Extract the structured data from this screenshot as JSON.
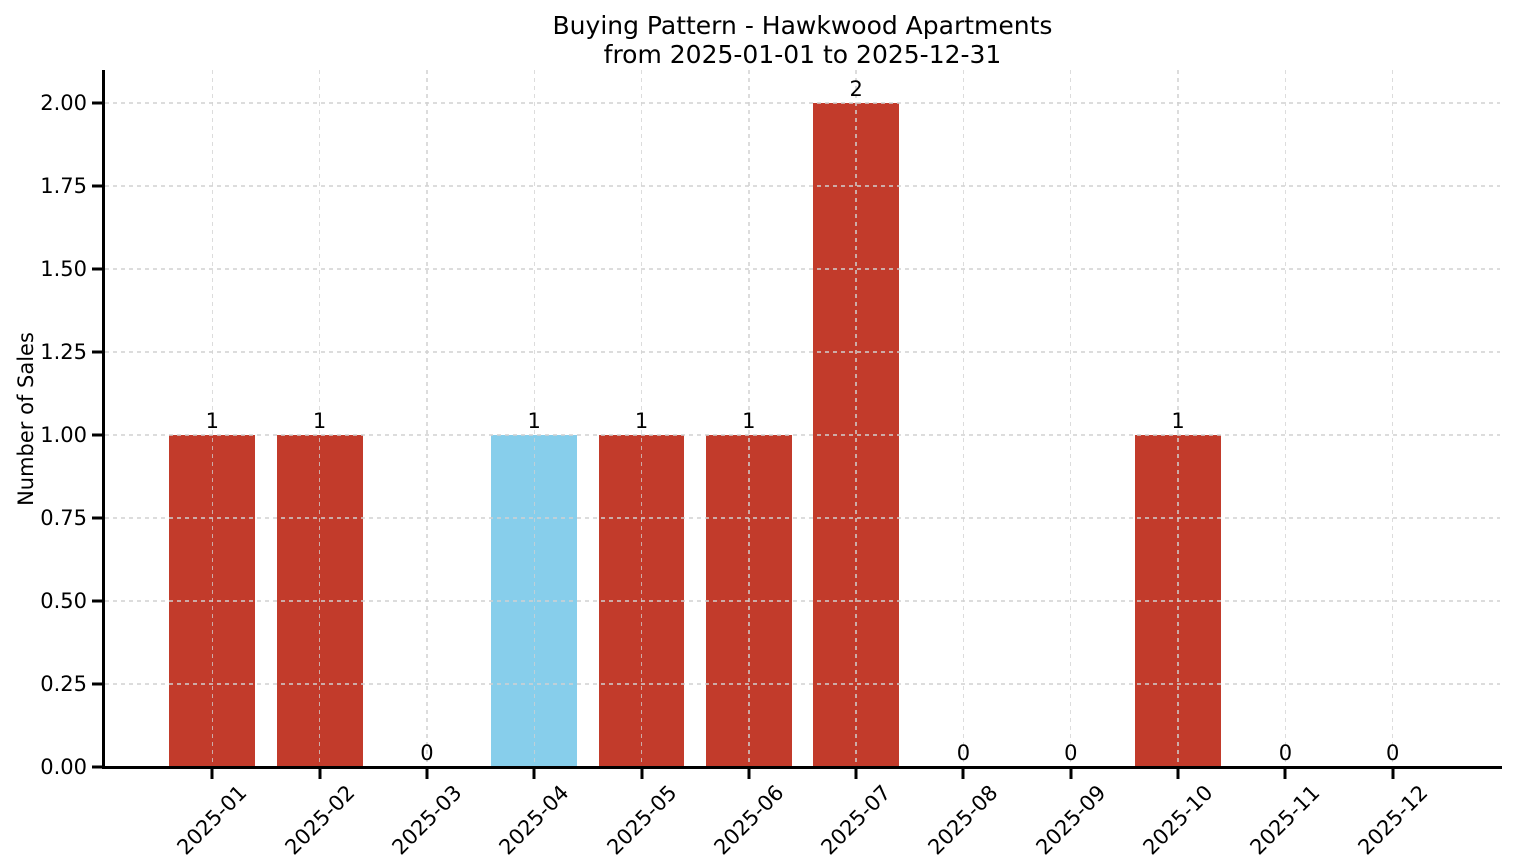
{
  "chart_data": {
    "type": "bar",
    "title": "Buying Pattern - Hawkwood Apartments",
    "subtitle": "from 2025-01-01 to 2025-12-31",
    "categories": [
      "2025-01",
      "2025-02",
      "2025-03",
      "2025-04",
      "2025-05",
      "2025-06",
      "2025-07",
      "2025-08",
      "2025-09",
      "2025-10",
      "2025-11",
      "2025-12"
    ],
    "values": [
      1,
      1,
      0,
      1,
      1,
      1,
      2,
      0,
      0,
      1,
      0,
      0
    ],
    "bar_labels": [
      "1",
      "1",
      "0",
      "1",
      "1",
      "1",
      "2",
      "0",
      "0",
      "1",
      "0",
      "0"
    ],
    "bar_colors": [
      "#c23b2b",
      "#c23b2b",
      "#c23b2b",
      "#87ceeb",
      "#c23b2b",
      "#c23b2b",
      "#c23b2b",
      "#c23b2b",
      "#c23b2b",
      "#c23b2b",
      "#c23b2b",
      "#c23b2b"
    ],
    "highlighted_category": "2025-04",
    "xlabel": "",
    "ylabel": "Number of Sales",
    "ylim": [
      0,
      2.1
    ],
    "yticks": [
      0,
      0.25,
      0.5,
      0.75,
      1,
      1.25,
      1.5,
      1.75,
      2
    ],
    "ytick_labels": [
      "0.00",
      "0.25",
      "0.50",
      "0.75",
      "1.00",
      "1.25",
      "1.50",
      "1.75",
      "2.00"
    ],
    "grid": true,
    "grid_style": "dashed",
    "legend_position": "none"
  },
  "colors": {
    "bar_default": "#c23b2b",
    "bar_highlight": "#87ceeb",
    "grid": "#d1d1d1",
    "axis": "#000000",
    "text": "#000000",
    "background": "#ffffff"
  }
}
